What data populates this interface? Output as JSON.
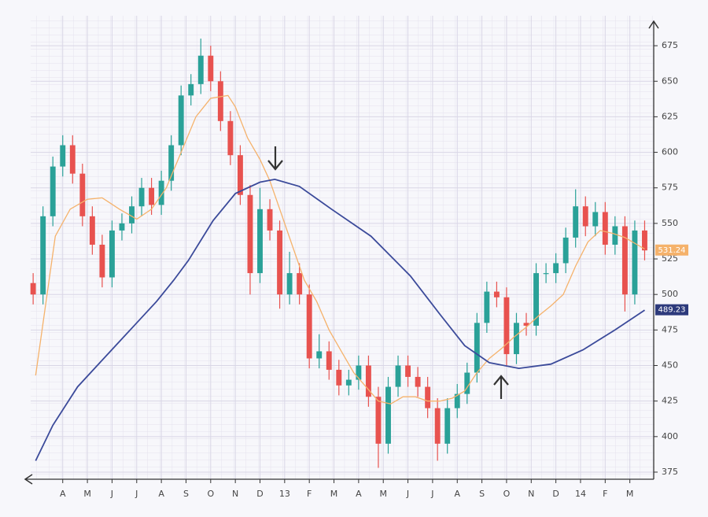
{
  "chart_data": {
    "type": "candlestick",
    "up_color": "#2aa198",
    "down_color": "#e8524f",
    "x": [
      -0.2,
      0.2,
      0.6,
      1.0,
      1.4,
      1.8,
      2.2,
      2.6,
      3.0,
      3.4,
      3.8,
      4.2,
      4.6,
      5.0,
      5.4,
      5.8,
      6.2,
      6.6,
      7.0,
      7.4,
      7.8,
      8.2,
      8.6,
      9.0,
      9.4,
      9.8,
      10.2,
      10.6,
      11.0,
      11.4,
      11.8,
      12.2,
      12.6,
      13.0,
      13.4,
      13.8,
      14.2,
      14.6,
      15.0,
      15.4,
      15.8,
      16.2,
      16.6,
      17.0,
      17.4,
      17.8,
      18.2,
      18.6,
      19.0,
      19.4,
      19.8,
      20.2,
      20.6,
      21.0,
      21.4,
      21.8,
      22.2,
      22.6,
      23.0,
      23.4,
      23.8,
      24.2,
      24.6
    ],
    "open": [
      508,
      500,
      555,
      590,
      605,
      585,
      555,
      535,
      512,
      545,
      550,
      562,
      575,
      563,
      580,
      605,
      640,
      648,
      668,
      650,
      622,
      598,
      570,
      515,
      560,
      545,
      500,
      515,
      500,
      455,
      460,
      447,
      436,
      440,
      450,
      428,
      395,
      435,
      450,
      442,
      435,
      420,
      395,
      420,
      430,
      445,
      480,
      502,
      498,
      458,
      480,
      478,
      515,
      515,
      522,
      540,
      562,
      548,
      558,
      535,
      548,
      500,
      545
    ],
    "high": [
      515,
      562,
      597,
      612,
      612,
      592,
      562,
      542,
      552,
      557,
      569,
      582,
      582,
      587,
      612,
      647,
      655,
      680,
      675,
      657,
      629,
      605,
      577,
      575,
      567,
      552,
      530,
      522,
      507,
      472,
      467,
      454,
      447,
      457,
      457,
      435,
      442,
      457,
      457,
      449,
      442,
      427,
      427,
      437,
      452,
      487,
      509,
      509,
      505,
      487,
      487,
      522,
      522,
      529,
      547,
      574,
      569,
      565,
      565,
      555,
      555,
      552,
      552
    ],
    "low": [
      493,
      493,
      548,
      583,
      578,
      548,
      528,
      505,
      505,
      538,
      543,
      555,
      556,
      556,
      573,
      598,
      633,
      641,
      643,
      615,
      591,
      563,
      500,
      508,
      538,
      490,
      493,
      493,
      448,
      448,
      440,
      429,
      429,
      433,
      421,
      378,
      388,
      428,
      435,
      428,
      413,
      383,
      388,
      413,
      423,
      438,
      473,
      491,
      450,
      451,
      471,
      471,
      508,
      508,
      515,
      533,
      541,
      541,
      528,
      528,
      488,
      493,
      524
    ],
    "close": [
      500,
      555,
      590,
      605,
      585,
      555,
      535,
      512,
      545,
      550,
      562,
      575,
      563,
      580,
      605,
      640,
      648,
      668,
      650,
      622,
      598,
      570,
      515,
      560,
      545,
      500,
      515,
      500,
      455,
      460,
      447,
      436,
      440,
      450,
      428,
      395,
      435,
      450,
      442,
      435,
      420,
      395,
      420,
      430,
      445,
      480,
      502,
      498,
      458,
      480,
      478,
      515,
      515,
      522,
      540,
      562,
      548,
      558,
      535,
      548,
      500,
      545,
      531
    ],
    "lines": [
      {
        "color": "#f5b26b",
        "x": [
          -0.1,
          0.7,
          1.3,
          2.0,
          2.6,
          3.3,
          4.0,
          4.6,
          5.2,
          5.8,
          6.4,
          7.0,
          7.7,
          8.0,
          8.5,
          9.0,
          9.4,
          9.8,
          10.3,
          10.8,
          11.3,
          11.8,
          12.3,
          12.8,
          13.3,
          13.8,
          14.3,
          14.8,
          15.3,
          15.8,
          16.3,
          16.8,
          17.3,
          17.8,
          18.3,
          18.8,
          19.3,
          19.8,
          20.3,
          20.8,
          21.3,
          21.8,
          22.3,
          22.8,
          23.3,
          23.8,
          24.3,
          24.6
        ],
        "values": [
          443,
          541,
          560,
          567,
          568,
          560,
          553,
          560,
          575,
          600,
          625,
          638,
          640,
          632,
          610,
          595,
          580,
          560,
          535,
          510,
          495,
          475,
          460,
          445,
          435,
          425,
          423,
          428,
          428,
          425,
          425,
          427,
          432,
          445,
          455,
          462,
          470,
          477,
          485,
          492,
          500,
          520,
          537,
          545,
          543,
          540,
          535,
          532
        ]
      },
      {
        "color": "#3b4a9a",
        "x": [
          -0.1,
          0.6,
          1.6,
          2.4,
          3.2,
          4.0,
          4.8,
          5.5,
          6.1,
          7.1,
          8.0,
          9.0,
          9.6,
          10.6,
          11.9,
          13.5,
          15.1,
          16.3,
          17.3,
          18.3,
          19.5,
          20.8,
          22.1,
          23.4,
          24.6
        ],
        "values": [
          383,
          408,
          435,
          450,
          465,
          480,
          495,
          510,
          524,
          552,
          571,
          579,
          581,
          576,
          560,
          541,
          513,
          486,
          464,
          452,
          448,
          451,
          461,
          475,
          489
        ]
      }
    ],
    "price_labels": [
      {
        "value": 531.24,
        "color": "#f5b26b"
      },
      {
        "value": 489.23,
        "color": "#2d3a7c"
      }
    ],
    "xlim": [
      -0.3,
      25
    ],
    "xticks": [
      {
        "value": 1,
        "label": "A"
      },
      {
        "value": 2,
        "label": "M"
      },
      {
        "value": 3,
        "label": "J"
      },
      {
        "value": 4,
        "label": "J"
      },
      {
        "value": 5,
        "label": "A"
      },
      {
        "value": 6,
        "label": "S"
      },
      {
        "value": 7,
        "label": "O"
      },
      {
        "value": 8,
        "label": "N"
      },
      {
        "value": 9,
        "label": "D"
      },
      {
        "value": 10,
        "label": "13"
      },
      {
        "value": 11,
        "label": "F"
      },
      {
        "value": 12,
        "label": "M"
      },
      {
        "value": 13,
        "label": "A"
      },
      {
        "value": 14,
        "label": "M"
      },
      {
        "value": 15,
        "label": "J"
      },
      {
        "value": 16,
        "label": "J"
      },
      {
        "value": 17,
        "label": "A"
      },
      {
        "value": 18,
        "label": "S"
      },
      {
        "value": 19,
        "label": "O"
      },
      {
        "value": 20,
        "label": "N"
      },
      {
        "value": 21,
        "label": "D"
      },
      {
        "value": 22,
        "label": "14"
      },
      {
        "value": 23,
        "label": "F"
      },
      {
        "value": 24,
        "label": "M"
      }
    ],
    "ylim": [
      370,
      690
    ],
    "yticks": [
      375,
      400,
      425,
      450,
      475,
      500,
      525,
      550,
      575,
      600,
      625,
      650,
      675
    ],
    "grid": true
  }
}
